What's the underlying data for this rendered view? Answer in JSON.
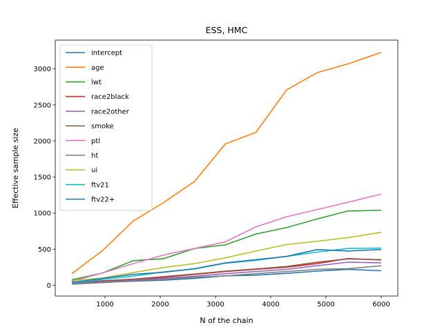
{
  "chart_data": {
    "type": "line",
    "title": "ESS, HMC",
    "xlabel": "N of the chain",
    "ylabel": "Effective sample size",
    "xlim": [
      100,
      6300
    ],
    "ylim": [
      -150,
      3400
    ],
    "xticks": [
      1000,
      2000,
      3000,
      4000,
      5000,
      6000
    ],
    "yticks": [
      0,
      500,
      1000,
      1500,
      2000,
      2500,
      3000
    ],
    "grid": false,
    "legend_position": "top-left",
    "x": [
      400,
      956,
      1511,
      2067,
      2622,
      3178,
      3733,
      4289,
      4844,
      5400,
      6000
    ],
    "series": [
      {
        "name": "intercept",
        "color": "#1f77b4",
        "values": [
          30,
          40,
          55,
          70,
          95,
          130,
          140,
          165,
          195,
          220,
          200
        ]
      },
      {
        "name": "age",
        "color": "#ff7f0e",
        "values": [
          160,
          480,
          890,
          1150,
          1440,
          1960,
          2120,
          2710,
          2950,
          3070,
          3230
        ]
      },
      {
        "name": "lwt",
        "color": "#2ca02c",
        "values": [
          75,
          170,
          340,
          370,
          510,
          560,
          710,
          800,
          920,
          1030,
          1040
        ]
      },
      {
        "name": "race2black",
        "color": "#d62728",
        "values": [
          35,
          60,
          80,
          110,
          150,
          190,
          220,
          250,
          300,
          370,
          350
        ]
      },
      {
        "name": "race2other",
        "color": "#9467bd",
        "values": [
          20,
          45,
          70,
          95,
          125,
          160,
          190,
          220,
          270,
          320,
          310
        ]
      },
      {
        "name": "smoke",
        "color": "#8c564b",
        "values": [
          40,
          60,
          85,
          120,
          155,
          195,
          225,
          260,
          320,
          365,
          355
        ]
      },
      {
        "name": "ptl",
        "color": "#e377c2",
        "values": [
          55,
          170,
          300,
          420,
          510,
          600,
          810,
          950,
          1050,
          1150,
          1265
        ]
      },
      {
        "name": "ht",
        "color": "#7f7f7f",
        "values": [
          15,
          35,
          60,
          80,
          110,
          130,
          160,
          190,
          220,
          230,
          270
        ]
      },
      {
        "name": "ui",
        "color": "#bcbd22",
        "values": [
          65,
          100,
          175,
          245,
          300,
          380,
          475,
          565,
          610,
          660,
          735
        ]
      },
      {
        "name": "ftv21",
        "color": "#17becf",
        "values": [
          30,
          80,
          125,
          185,
          225,
          305,
          345,
          400,
          460,
          510,
          515
        ]
      },
      {
        "name": "ftv22+",
        "color": "#1f77b4",
        "values": [
          40,
          95,
          150,
          180,
          230,
          310,
          355,
          400,
          495,
          475,
          495
        ]
      }
    ]
  }
}
